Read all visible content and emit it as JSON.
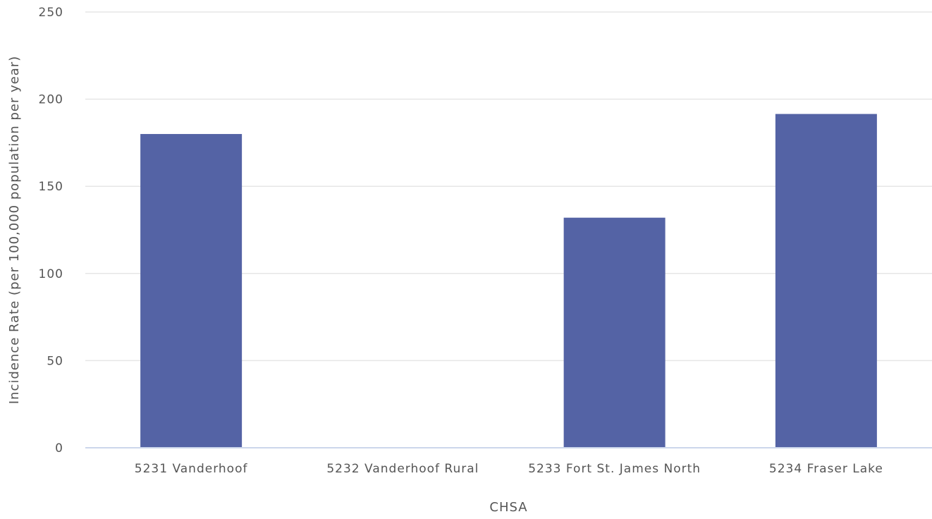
{
  "chart_data": {
    "type": "bar",
    "categories": [
      "5231 Vanderhoof",
      "5232 Vanderhoof Rural",
      "5233 Fort St. James North",
      "5234 Fraser Lake"
    ],
    "values": [
      180,
      0,
      132,
      191.5
    ],
    "xlabel": "CHSA",
    "ylabel": "Incidence Rate (per 100,000 population per year)",
    "ylim": [
      0,
      250
    ],
    "yticks": [
      "0",
      "50",
      "100",
      "150",
      "200",
      "250"
    ],
    "grid": true,
    "legend": "none"
  },
  "colors": {
    "bar": "#5463a5",
    "grid": "#e6e6e6",
    "axis_line": "#ccd6eb",
    "text": "#555555"
  }
}
